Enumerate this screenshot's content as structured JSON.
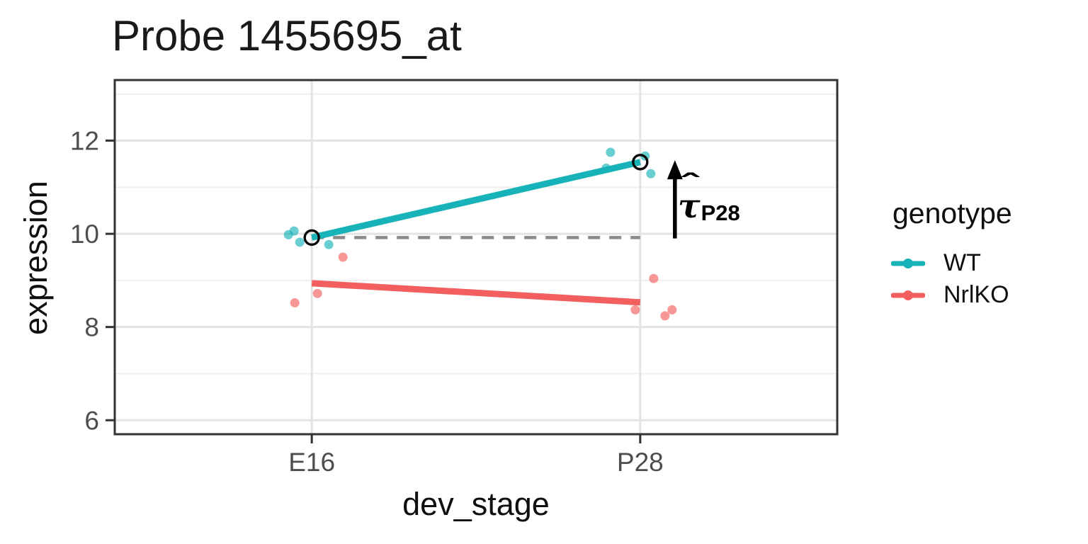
{
  "figure": {
    "background": "#FFFFFF"
  },
  "chart_data": {
    "type": "scatter+line",
    "title": "Probe 1455695_at",
    "xlabel": "dev_stage",
    "ylabel": "expression",
    "categories": [
      "E16",
      "P28"
    ],
    "y_ticks": [
      6,
      8,
      10,
      12
    ],
    "y_minor_ticks": [
      7,
      9,
      11,
      13
    ],
    "ylim": [
      5.7,
      13.3
    ],
    "grid": "major+minor",
    "legend_position": "right",
    "series": [
      {
        "name": "WT",
        "color": "#18B3B8",
        "fit_values": {
          "E16": 9.92,
          "P28": 11.54
        },
        "points": [
          {
            "stage": "E16",
            "value": 9.98,
            "dx": -33
          },
          {
            "stage": "E16",
            "value": 10.06,
            "dx": -25
          },
          {
            "stage": "E16",
            "value": 9.82,
            "dx": -17
          },
          {
            "stage": "E16",
            "value": 9.77,
            "dx": 24
          },
          {
            "stage": "P28",
            "value": 11.75,
            "dx": -42
          },
          {
            "stage": "P28",
            "value": 11.41,
            "dx": -48
          },
          {
            "stage": "P28",
            "value": 11.67,
            "dx": 7
          },
          {
            "stage": "P28",
            "value": 11.29,
            "dx": 15
          }
        ]
      },
      {
        "name": "NrlKO",
        "color": "#F25F5E",
        "fit_values": {
          "E16": 8.94,
          "P28": 8.53
        },
        "points": [
          {
            "stage": "E16",
            "value": 9.5,
            "dx": 44
          },
          {
            "stage": "E16",
            "value": 8.72,
            "dx": 8
          },
          {
            "stage": "E16",
            "value": 8.52,
            "dx": -24
          },
          {
            "stage": "P28",
            "value": 9.04,
            "dx": 19
          },
          {
            "stage": "P28",
            "value": 8.37,
            "dx": -7
          },
          {
            "stage": "P28",
            "value": 8.24,
            "dx": 35
          },
          {
            "stage": "P28",
            "value": 8.37,
            "dx": 45
          }
        ]
      }
    ],
    "annotations": {
      "dashed_line": {
        "y": 9.92,
        "from": "E16",
        "to": "P28",
        "color": "#8A8A8A"
      },
      "open_circles": [
        {
          "stage": "E16",
          "value": 9.92
        },
        {
          "stage": "P28",
          "value": 11.54
        }
      ],
      "arrow": {
        "stage": "P28",
        "dx": 49,
        "from": 9.9,
        "to": 11.58,
        "color": "#000000"
      },
      "label": {
        "symbol": "τ",
        "hat": "ˆ",
        "subscript": "P28"
      }
    }
  },
  "axes": {
    "x_label": "dev_stage",
    "y_label": "expression"
  },
  "legend": {
    "title": "genotype",
    "items": [
      {
        "label": "WT",
        "color": "#18B3B8"
      },
      {
        "label": "NrlKO",
        "color": "#F25F5E"
      }
    ]
  },
  "style": {
    "panel_border": "#333333",
    "grid_major": "#E3E3E3",
    "grid_minor": "#EFEFEF",
    "tick_color": "#333333",
    "tick_label_color": "#4D4D4D"
  }
}
